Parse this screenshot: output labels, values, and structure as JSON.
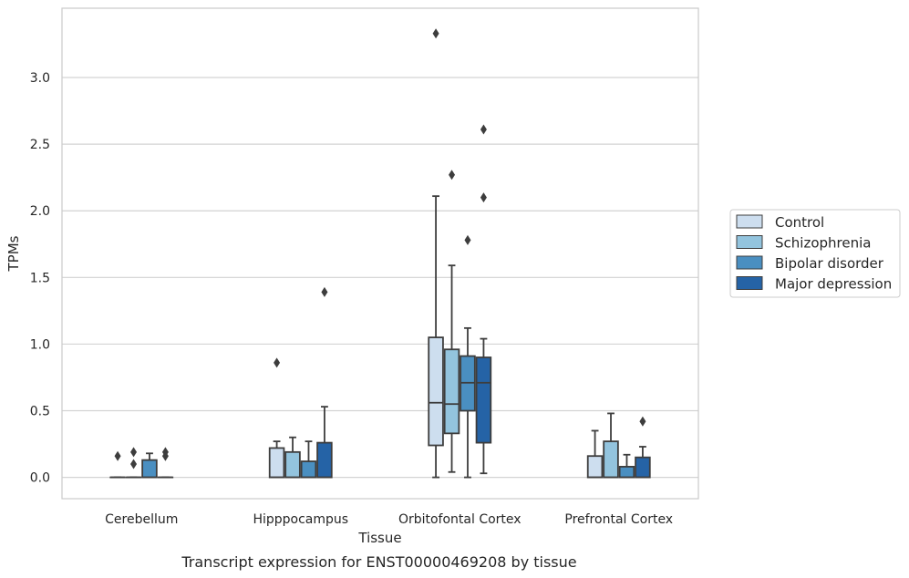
{
  "chart_data": {
    "type": "box",
    "xlabel": "Tissue",
    "ylabel": "TPMs",
    "caption": "Transcript expression for ENST00000469208 by tissue",
    "ylim": [
      -0.16,
      3.52
    ],
    "yticks": [
      "0.0",
      "0.5",
      "1.0",
      "1.5",
      "2.0",
      "2.5",
      "3.0"
    ],
    "grid": "horizontal",
    "legend_position": "right",
    "categories": [
      "Cerebellum",
      "Hipppocampus",
      "Orbitofontal Cortex",
      "Prefrontal Cortex"
    ],
    "series": [
      {
        "name": "Control",
        "color": "#cddeef",
        "boxes": [
          {
            "min": 0,
            "q1": 0,
            "median": 0,
            "q3": 0,
            "max": 0,
            "outliers": [
              0.16
            ]
          },
          {
            "min": 0,
            "q1": 0,
            "median": 0,
            "q3": 0.22,
            "max": 0.27,
            "outliers": [
              0.86
            ]
          },
          {
            "min": 0,
            "q1": 0.24,
            "median": 0.56,
            "q3": 1.05,
            "max": 2.11,
            "outliers": [
              3.33
            ]
          },
          {
            "min": 0,
            "q1": 0,
            "median": 0,
            "q3": 0.16,
            "max": 0.35,
            "outliers": []
          }
        ]
      },
      {
        "name": "Schizophrenia",
        "color": "#93c4de",
        "boxes": [
          {
            "min": 0,
            "q1": 0,
            "median": 0,
            "q3": 0,
            "max": 0,
            "outliers": [
              0.19,
              0.1
            ]
          },
          {
            "min": 0,
            "q1": 0,
            "median": 0,
            "q3": 0.19,
            "max": 0.3,
            "outliers": []
          },
          {
            "min": 0.04,
            "q1": 0.33,
            "median": 0.55,
            "q3": 0.96,
            "max": 1.59,
            "outliers": [
              2.27
            ]
          },
          {
            "min": 0,
            "q1": 0,
            "median": 0,
            "q3": 0.27,
            "max": 0.48,
            "outliers": []
          }
        ]
      },
      {
        "name": "Bipolar disorder",
        "color": "#4a8fc1",
        "boxes": [
          {
            "min": 0,
            "q1": 0,
            "median": 0,
            "q3": 0.13,
            "max": 0.18,
            "outliers": []
          },
          {
            "min": 0,
            "q1": 0,
            "median": 0,
            "q3": 0.12,
            "max": 0.27,
            "outliers": []
          },
          {
            "min": 0,
            "q1": 0.5,
            "median": 0.71,
            "q3": 0.91,
            "max": 1.12,
            "outliers": [
              1.78
            ]
          },
          {
            "min": 0,
            "q1": 0,
            "median": 0,
            "q3": 0.08,
            "max": 0.17,
            "outliers": []
          }
        ]
      },
      {
        "name": "Major depression",
        "color": "#2563a6",
        "boxes": [
          {
            "min": 0,
            "q1": 0,
            "median": 0,
            "q3": 0,
            "max": 0,
            "outliers": [
              0.16,
              0.19
            ]
          },
          {
            "min": 0,
            "q1": 0,
            "median": 0,
            "q3": 0.26,
            "max": 0.53,
            "outliers": [
              1.39
            ]
          },
          {
            "min": 0.03,
            "q1": 0.26,
            "median": 0.71,
            "q3": 0.9,
            "max": 1.04,
            "outliers": [
              2.1,
              2.61
            ]
          },
          {
            "min": 0,
            "q1": 0,
            "median": 0,
            "q3": 0.15,
            "max": 0.23,
            "outliers": [
              0.42
            ]
          }
        ]
      }
    ]
  }
}
